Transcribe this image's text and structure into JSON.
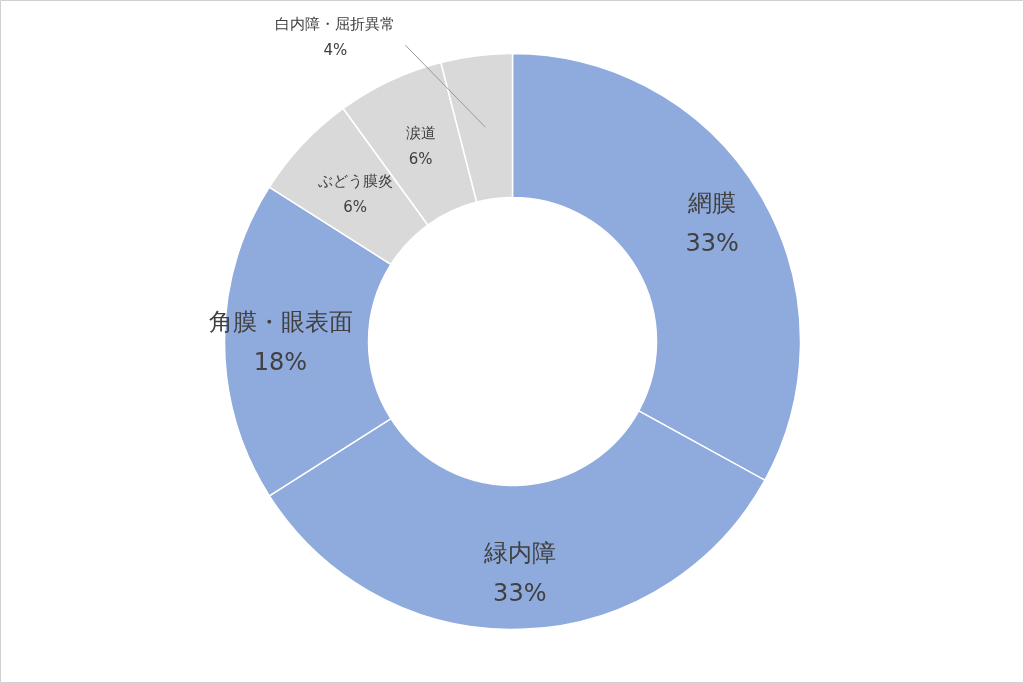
{
  "chart_data": {
    "type": "donut",
    "categories": [
      "網膜",
      "緑内障",
      "角膜・眼表面",
      "ぶどう膜炎",
      "涙道",
      "白内障・屈折異常"
    ],
    "values": [
      33,
      33,
      18,
      6,
      6,
      4
    ],
    "value_labels": [
      "33%",
      "33%",
      "18%",
      "6%",
      "6%",
      "4%"
    ],
    "colors": [
      "#8faadc",
      "#8faadc",
      "#8faadc",
      "#d9d9d9",
      "#d9d9d9",
      "#d9d9d9"
    ]
  }
}
